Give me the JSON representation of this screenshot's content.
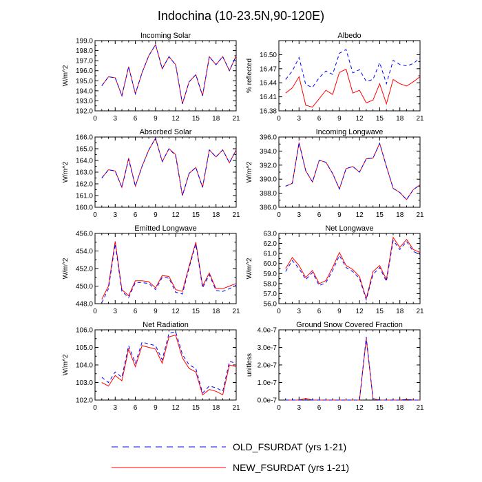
{
  "title": "Indochina (10-23.5N,90-120E)",
  "legend": [
    {
      "label": "OLD_FSURDAT (yrs 1-21)",
      "color": "#0000ff",
      "dashed": true
    },
    {
      "label": "NEW_FSURDAT (yrs 1-21)",
      "color": "#ff0000",
      "dashed": false
    }
  ],
  "chart_data": [
    {
      "type": "line",
      "title": "Incoming Solar",
      "ylabel": "W/m^2",
      "x": [
        1,
        2,
        3,
        4,
        5,
        6,
        7,
        8,
        9,
        10,
        11,
        12,
        13,
        14,
        15,
        16,
        17,
        18,
        19,
        20,
        21
      ],
      "xlim": [
        0,
        21
      ],
      "xticks": [
        "0",
        "3",
        "6",
        "9",
        "12",
        "15",
        "18",
        "21"
      ],
      "ylim": [
        192.0,
        199.0
      ],
      "yticks": [
        "192.0",
        "193.0",
        "194.0",
        "195.0",
        "196.0",
        "197.0",
        "198.0",
        "199.0"
      ],
      "series": [
        {
          "name": "OLD_FSURDAT (yrs 1-21)",
          "values": [
            194.5,
            195.4,
            195.3,
            193.5,
            196.4,
            193.7,
            195.8,
            197.5,
            198.6,
            196.2,
            197.4,
            196.6,
            192.7,
            194.9,
            195.6,
            193.5,
            197.4,
            196.6,
            197.4,
            196.0,
            197.5
          ]
        },
        {
          "name": "NEW_FSURDAT (yrs 1-21)",
          "values": [
            194.5,
            195.4,
            195.3,
            193.5,
            196.4,
            193.7,
            195.8,
            197.5,
            198.6,
            196.2,
            197.4,
            196.6,
            192.7,
            194.9,
            195.6,
            193.5,
            197.4,
            196.6,
            197.4,
            196.0,
            197.5
          ]
        }
      ]
    },
    {
      "type": "line",
      "title": "Albedo",
      "ylabel": "% reflected",
      "x": [
        1,
        2,
        3,
        4,
        5,
        6,
        7,
        8,
        9,
        10,
        11,
        12,
        13,
        14,
        15,
        16,
        17,
        18,
        19,
        20,
        21
      ],
      "xlim": [
        0,
        21
      ],
      "xticks": [
        "0",
        "3",
        "6",
        "9",
        "12",
        "15",
        "18",
        "21"
      ],
      "ylim": [
        16.38,
        16.53
      ],
      "yticks": [
        "16.38",
        "16.41",
        "16.44",
        "16.47",
        "16.50"
      ],
      "ytick_values": [
        16.38,
        16.41,
        16.44,
        16.47,
        16.5
      ],
      "series": [
        {
          "name": "OLD_FSURDAT (yrs 1-21)",
          "values": [
            16.447,
            16.465,
            16.494,
            16.436,
            16.43,
            16.451,
            16.465,
            16.458,
            16.503,
            16.511,
            16.461,
            16.468,
            16.443,
            16.447,
            16.483,
            16.438,
            16.488,
            16.479,
            16.476,
            16.481,
            16.493
          ]
        },
        {
          "name": "NEW_FSURDAT (yrs 1-21)",
          "values": [
            16.418,
            16.429,
            16.453,
            16.392,
            16.388,
            16.406,
            16.424,
            16.415,
            16.462,
            16.469,
            16.418,
            16.424,
            16.397,
            16.403,
            16.438,
            16.395,
            16.447,
            16.438,
            16.433,
            16.442,
            16.453
          ]
        }
      ]
    },
    {
      "type": "line",
      "title": "Absorbed Solar",
      "ylabel": "W/m^2",
      "x": [
        1,
        2,
        3,
        4,
        5,
        6,
        7,
        8,
        9,
        10,
        11,
        12,
        13,
        14,
        15,
        16,
        17,
        18,
        19,
        20,
        21
      ],
      "xlim": [
        0,
        21
      ],
      "xticks": [
        "0",
        "3",
        "6",
        "9",
        "12",
        "15",
        "18",
        "21"
      ],
      "ylim": [
        160.0,
        166.0
      ],
      "yticks": [
        "160.0",
        "161.0",
        "162.0",
        "163.0",
        "164.0",
        "165.0",
        "166.0"
      ],
      "series": [
        {
          "name": "OLD_FSURDAT (yrs 1-21)",
          "values": [
            162.5,
            163.2,
            163.1,
            161.7,
            164.1,
            161.8,
            163.5,
            164.9,
            165.9,
            163.9,
            165.0,
            164.4,
            161.0,
            162.9,
            163.4,
            161.7,
            164.9,
            164.3,
            164.9,
            163.8,
            164.9
          ]
        },
        {
          "name": "NEW_FSURDAT (yrs 1-21)",
          "values": [
            162.5,
            163.2,
            163.1,
            161.7,
            164.2,
            161.8,
            163.5,
            164.9,
            165.9,
            163.9,
            165.0,
            164.5,
            161.0,
            162.9,
            163.4,
            161.7,
            164.9,
            164.3,
            164.9,
            163.8,
            164.9
          ]
        }
      ]
    },
    {
      "type": "line",
      "title": "Incoming Longwave",
      "ylabel": "W/m^2",
      "x": [
        1,
        2,
        3,
        4,
        5,
        6,
        7,
        8,
        9,
        10,
        11,
        12,
        13,
        14,
        15,
        16,
        17,
        18,
        19,
        20,
        21
      ],
      "xlim": [
        0,
        21
      ],
      "xticks": [
        "0",
        "3",
        "6",
        "9",
        "12",
        "15",
        "18",
        "21"
      ],
      "ylim": [
        386.0,
        396.0
      ],
      "yticks": [
        "386.0",
        "388.0",
        "390.0",
        "392.0",
        "394.0",
        "396.0"
      ],
      "series": [
        {
          "name": "OLD_FSURDAT (yrs 1-21)",
          "values": [
            389.0,
            389.4,
            395.2,
            391.2,
            389.6,
            392.7,
            392.4,
            390.8,
            388.6,
            391.5,
            391.8,
            391.0,
            392.9,
            393.0,
            395.1,
            391.8,
            388.7,
            388.1,
            387.1,
            388.5,
            389.2
          ]
        },
        {
          "name": "NEW_FSURDAT (yrs 1-21)",
          "values": [
            389.0,
            389.4,
            395.2,
            391.2,
            389.6,
            392.7,
            392.4,
            390.8,
            388.6,
            391.5,
            391.8,
            391.0,
            392.9,
            393.0,
            395.1,
            391.8,
            388.7,
            388.1,
            387.1,
            388.5,
            389.2
          ]
        }
      ]
    },
    {
      "type": "line",
      "title": "Emitted Longwave",
      "ylabel": "W/m^2",
      "x": [
        1,
        2,
        3,
        4,
        5,
        6,
        7,
        8,
        9,
        10,
        11,
        12,
        13,
        14,
        15,
        16,
        17,
        18,
        19,
        20,
        21
      ],
      "xlim": [
        0,
        21
      ],
      "xticks": [
        "0",
        "3",
        "6",
        "9",
        "12",
        "15",
        "18",
        "21"
      ],
      "ylim": [
        448.0,
        456.0
      ],
      "yticks": [
        "448.0",
        "450.0",
        "452.0",
        "454.0",
        "456.0"
      ],
      "series": [
        {
          "name": "OLD_FSURDAT (yrs 1-21)",
          "values": [
            448.1,
            449.7,
            454.8,
            449.4,
            448.7,
            450.4,
            450.4,
            450.3,
            449.6,
            451.0,
            450.9,
            449.3,
            449.1,
            452.1,
            454.8,
            449.8,
            451.3,
            449.5,
            449.4,
            449.7,
            450.1
          ]
        },
        {
          "name": "NEW_FSURDAT (yrs 1-21)",
          "values": [
            448.5,
            450.0,
            455.1,
            449.6,
            448.9,
            450.6,
            450.6,
            450.5,
            449.8,
            451.2,
            451.1,
            449.6,
            449.4,
            452.3,
            455.0,
            450.0,
            451.5,
            449.7,
            449.7,
            450.0,
            450.3
          ]
        }
      ]
    },
    {
      "type": "line",
      "title": "Net Longwave",
      "ylabel": "W/m^2",
      "x": [
        1,
        2,
        3,
        4,
        5,
        6,
        7,
        8,
        9,
        10,
        11,
        12,
        13,
        14,
        15,
        16,
        17,
        18,
        19,
        20,
        21
      ],
      "xlim": [
        0,
        21
      ],
      "xticks": [
        "0",
        "3",
        "6",
        "9",
        "12",
        "15",
        "18",
        "21"
      ],
      "ylim": [
        56.0,
        63.0
      ],
      "yticks": [
        "56.0",
        "57.0",
        "58.0",
        "59.0",
        "60.0",
        "61.0",
        "62.0",
        "63.0"
      ],
      "series": [
        {
          "name": "OLD_FSURDAT (yrs 1-21)",
          "values": [
            59.2,
            60.3,
            59.5,
            58.4,
            59.1,
            57.8,
            58.1,
            59.3,
            60.8,
            59.6,
            59.2,
            58.5,
            56.4,
            58.9,
            59.6,
            58.2,
            62.3,
            61.4,
            62.2,
            61.2,
            60.9
          ]
        },
        {
          "name": "NEW_FSURDAT (yrs 1-21)",
          "values": [
            59.5,
            60.6,
            59.8,
            58.6,
            59.3,
            58.0,
            58.3,
            59.6,
            61.1,
            59.8,
            59.4,
            58.7,
            56.5,
            59.2,
            59.8,
            58.4,
            62.6,
            61.6,
            62.4,
            61.4,
            61.1
          ]
        }
      ]
    },
    {
      "type": "line",
      "title": "Net Radiation",
      "ylabel": "W/m^2",
      "x": [
        1,
        2,
        3,
        4,
        5,
        6,
        7,
        8,
        9,
        10,
        11,
        12,
        13,
        14,
        15,
        16,
        17,
        18,
        19,
        20,
        21
      ],
      "xlim": [
        0,
        21
      ],
      "xticks": [
        "0",
        "3",
        "6",
        "9",
        "12",
        "15",
        "18",
        "21"
      ],
      "ylim": [
        102.0,
        106.0
      ],
      "yticks": [
        "102.0",
        "103.0",
        "104.0",
        "105.0",
        "106.0"
      ],
      "series": [
        {
          "name": "OLD_FSURDAT (yrs 1-21)",
          "values": [
            103.3,
            103.0,
            103.6,
            103.3,
            105.1,
            104.1,
            105.3,
            105.2,
            105.1,
            104.3,
            105.8,
            105.9,
            104.6,
            104.0,
            103.8,
            102.4,
            102.8,
            102.7,
            102.5,
            104.2,
            104.1
          ]
        },
        {
          "name": "NEW_FSURDAT (yrs 1-21)",
          "values": [
            103.0,
            102.8,
            103.4,
            103.1,
            104.9,
            103.9,
            105.1,
            105.0,
            104.9,
            104.1,
            105.6,
            105.7,
            104.4,
            103.8,
            103.6,
            102.3,
            102.6,
            102.5,
            102.3,
            104.0,
            103.9
          ]
        }
      ]
    },
    {
      "type": "line",
      "title": "Ground Snow Covered Fraction",
      "ylabel": "unitless",
      "x": [
        1,
        2,
        3,
        4,
        5,
        6,
        7,
        8,
        9,
        10,
        11,
        12,
        13,
        14,
        15,
        16,
        17,
        18,
        19,
        20,
        21
      ],
      "xlim": [
        0,
        21
      ],
      "xticks": [
        "0",
        "3",
        "6",
        "9",
        "12",
        "15",
        "18",
        "21"
      ],
      "ylim": [
        0,
        4e-07
      ],
      "yticks": [
        "0.0e-7",
        "1.0e-7",
        "2.0e-7",
        "3.0e-7",
        "4.0e-7"
      ],
      "series": [
        {
          "name": "OLD_FSURDAT (yrs 1-21)",
          "values": [
            0,
            0,
            0,
            1e-09,
            0,
            0,
            0,
            0,
            0,
            0,
            0,
            0,
            3.6e-07,
            8e-09,
            0,
            0,
            0,
            0,
            3e-09,
            0,
            0
          ]
        },
        {
          "name": "NEW_FSURDAT (yrs 1-21)",
          "values": [
            0,
            0,
            0,
            1e-08,
            0,
            0,
            0,
            0,
            0,
            0,
            0,
            0,
            3.5e-07,
            8e-09,
            0,
            0,
            0,
            0,
            4e-09,
            0,
            0
          ]
        }
      ]
    }
  ]
}
